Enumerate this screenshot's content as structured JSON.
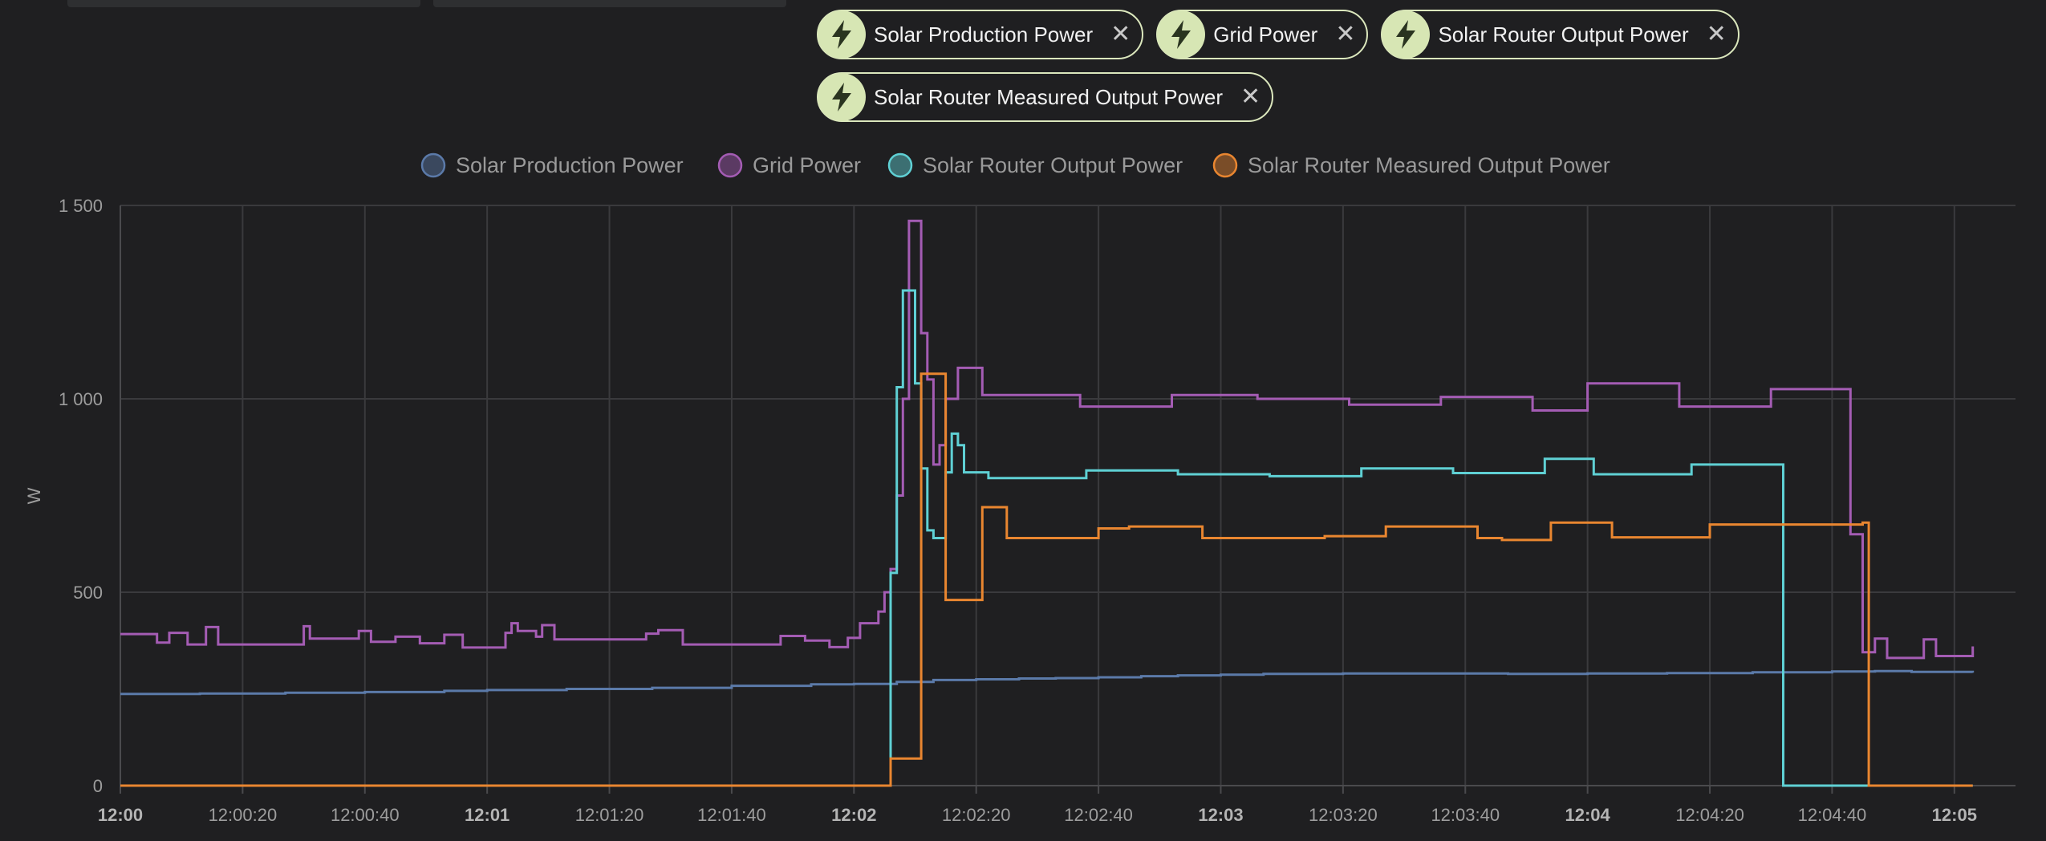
{
  "chips": [
    {
      "label": "Solar Production Power",
      "icon": "lightning-bolt-icon"
    },
    {
      "label": "Grid Power",
      "icon": "lightning-bolt-icon"
    },
    {
      "label": "Solar Router Output Power",
      "icon": "lightning-bolt-icon"
    },
    {
      "label": "Solar Router Measured Output Power",
      "icon": "lightning-bolt-icon"
    }
  ],
  "chip_close_glyph": "✕",
  "chart_data": {
    "type": "line",
    "step": true,
    "ylabel": "W",
    "ylim": [
      0,
      1500
    ],
    "yticks": [
      0,
      500,
      1000,
      1500
    ],
    "ytick_labels": [
      "0",
      "500",
      "1 000",
      "1 500"
    ],
    "xlim_seconds": [
      0,
      310
    ],
    "xticks": [
      {
        "t": 0,
        "label": "12:00",
        "bold": true
      },
      {
        "t": 20,
        "label": "12:00:20",
        "bold": false
      },
      {
        "t": 40,
        "label": "12:00:40",
        "bold": false
      },
      {
        "t": 60,
        "label": "12:01",
        "bold": true
      },
      {
        "t": 80,
        "label": "12:01:20",
        "bold": false
      },
      {
        "t": 100,
        "label": "12:01:40",
        "bold": false
      },
      {
        "t": 120,
        "label": "12:02",
        "bold": true
      },
      {
        "t": 140,
        "label": "12:02:20",
        "bold": false
      },
      {
        "t": 160,
        "label": "12:02:40",
        "bold": false
      },
      {
        "t": 180,
        "label": "12:03",
        "bold": true
      },
      {
        "t": 200,
        "label": "12:03:20",
        "bold": false
      },
      {
        "t": 220,
        "label": "12:03:40",
        "bold": false
      },
      {
        "t": 240,
        "label": "12:04",
        "bold": true
      },
      {
        "t": 260,
        "label": "12:04:20",
        "bold": false
      },
      {
        "t": 280,
        "label": "12:04:40",
        "bold": false
      },
      {
        "t": 300,
        "label": "12:05",
        "bold": true
      }
    ],
    "grid": true,
    "legend": "top",
    "series": [
      {
        "name": "Solar Production Power",
        "color": "#5b7aa9",
        "points": [
          [
            0,
            237
          ],
          [
            13,
            238
          ],
          [
            27,
            240
          ],
          [
            40,
            242
          ],
          [
            53,
            245
          ],
          [
            60,
            247
          ],
          [
            73,
            250
          ],
          [
            87,
            253
          ],
          [
            100,
            258
          ],
          [
            113,
            262
          ],
          [
            120,
            263
          ],
          [
            127,
            268
          ],
          [
            133,
            273
          ],
          [
            140,
            275
          ],
          [
            147,
            277
          ],
          [
            153,
            278
          ],
          [
            160,
            280
          ],
          [
            167,
            283
          ],
          [
            173,
            285
          ],
          [
            180,
            287
          ],
          [
            187,
            289
          ],
          [
            200,
            290
          ],
          [
            213,
            290
          ],
          [
            227,
            289
          ],
          [
            240,
            290
          ],
          [
            253,
            291
          ],
          [
            267,
            293
          ],
          [
            280,
            295
          ],
          [
            287,
            296
          ],
          [
            293,
            294
          ],
          [
            303,
            292
          ]
        ]
      },
      {
        "name": "Grid Power",
        "color": "#a45cb4",
        "points": [
          [
            0,
            392
          ],
          [
            6,
            370
          ],
          [
            8,
            395
          ],
          [
            11,
            365
          ],
          [
            14,
            410
          ],
          [
            16,
            365
          ],
          [
            30,
            412
          ],
          [
            31,
            380
          ],
          [
            39,
            400
          ],
          [
            41,
            372
          ],
          [
            45,
            385
          ],
          [
            49,
            368
          ],
          [
            53,
            390
          ],
          [
            56,
            357
          ],
          [
            63,
            395
          ],
          [
            64,
            420
          ],
          [
            65,
            400
          ],
          [
            68,
            385
          ],
          [
            69,
            415
          ],
          [
            71,
            378
          ],
          [
            86,
            393
          ],
          [
            88,
            402
          ],
          [
            92,
            365
          ],
          [
            108,
            387
          ],
          [
            112,
            375
          ],
          [
            116,
            358
          ],
          [
            119,
            382
          ],
          [
            121,
            420
          ],
          [
            124,
            450
          ],
          [
            125,
            500
          ],
          [
            126,
            560
          ],
          [
            127,
            750
          ],
          [
            128,
            1000
          ],
          [
            129,
            1460
          ],
          [
            131,
            1170
          ],
          [
            132,
            1050
          ],
          [
            133,
            830
          ],
          [
            134,
            880
          ],
          [
            135,
            1000
          ],
          [
            136,
            1000
          ],
          [
            137,
            1080
          ],
          [
            141,
            1010
          ],
          [
            157,
            980
          ],
          [
            172,
            1010
          ],
          [
            186,
            1000
          ],
          [
            201,
            985
          ],
          [
            216,
            1005
          ],
          [
            231,
            970
          ],
          [
            240,
            1040
          ],
          [
            255,
            980
          ],
          [
            270,
            1025
          ],
          [
            283,
            650
          ],
          [
            285,
            345
          ],
          [
            287,
            380
          ],
          [
            289,
            330
          ],
          [
            295,
            378
          ],
          [
            297,
            335
          ],
          [
            303,
            360
          ]
        ]
      },
      {
        "name": "Solar Router Output Power",
        "color": "#5fd0d4",
        "points": [
          [
            0,
            0
          ],
          [
            125,
            0
          ],
          [
            126,
            550
          ],
          [
            127,
            1030
          ],
          [
            128,
            1280
          ],
          [
            130,
            1040
          ],
          [
            131,
            820
          ],
          [
            132,
            660
          ],
          [
            133,
            640
          ],
          [
            135,
            810
          ],
          [
            136,
            910
          ],
          [
            137,
            880
          ],
          [
            138,
            810
          ],
          [
            142,
            795
          ],
          [
            158,
            815
          ],
          [
            173,
            805
          ],
          [
            188,
            800
          ],
          [
            203,
            820
          ],
          [
            218,
            808
          ],
          [
            233,
            845
          ],
          [
            241,
            805
          ],
          [
            257,
            830
          ],
          [
            271,
            830
          ],
          [
            272,
            0
          ],
          [
            303,
            0
          ]
        ]
      },
      {
        "name": "Solar Router Measured Output Power",
        "color": "#e98630",
        "points": [
          [
            0,
            0
          ],
          [
            125,
            0
          ],
          [
            126,
            70
          ],
          [
            131,
            1065
          ],
          [
            135,
            480
          ],
          [
            141,
            720
          ],
          [
            145,
            640
          ],
          [
            160,
            665
          ],
          [
            165,
            670
          ],
          [
            177,
            640
          ],
          [
            197,
            645
          ],
          [
            207,
            670
          ],
          [
            222,
            640
          ],
          [
            226,
            635
          ],
          [
            234,
            680
          ],
          [
            244,
            642
          ],
          [
            260,
            675
          ],
          [
            285,
            680
          ],
          [
            286,
            0
          ],
          [
            303,
            0
          ]
        ]
      }
    ]
  }
}
